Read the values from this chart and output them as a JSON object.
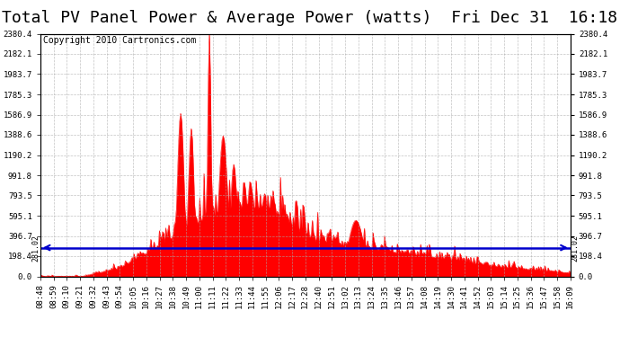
{
  "title": "Total PV Panel Power & Average Power (watts)  Fri Dec 31  16:18",
  "copyright": "Copyright 2010 Cartronics.com",
  "avg_power": 281.02,
  "ymax": 2380.4,
  "yticks": [
    0.0,
    198.4,
    396.7,
    595.1,
    793.5,
    991.8,
    1190.2,
    1388.6,
    1586.9,
    1785.3,
    1983.7,
    2182.1,
    2380.4
  ],
  "background_color": "#ffffff",
  "plot_bg_color": "#ffffff",
  "bar_color": "#ff0000",
  "avg_line_color": "#0000cc",
  "grid_color": "#aaaaaa",
  "title_fontsize": 13,
  "copyright_fontsize": 7,
  "tick_fontsize": 6.5,
  "x_tick_labels": [
    "08:48",
    "08:59",
    "09:10",
    "09:21",
    "09:32",
    "09:43",
    "09:54",
    "10:05",
    "10:16",
    "10:27",
    "10:38",
    "10:49",
    "11:00",
    "11:11",
    "11:22",
    "11:33",
    "11:44",
    "11:55",
    "12:06",
    "12:17",
    "12:28",
    "12:40",
    "12:51",
    "13:02",
    "13:13",
    "13:24",
    "13:35",
    "13:46",
    "13:57",
    "14:08",
    "14:19",
    "14:30",
    "14:41",
    "14:52",
    "15:03",
    "15:14",
    "15:25",
    "15:36",
    "15:47",
    "15:58",
    "16:09"
  ],
  "n_points": 500
}
